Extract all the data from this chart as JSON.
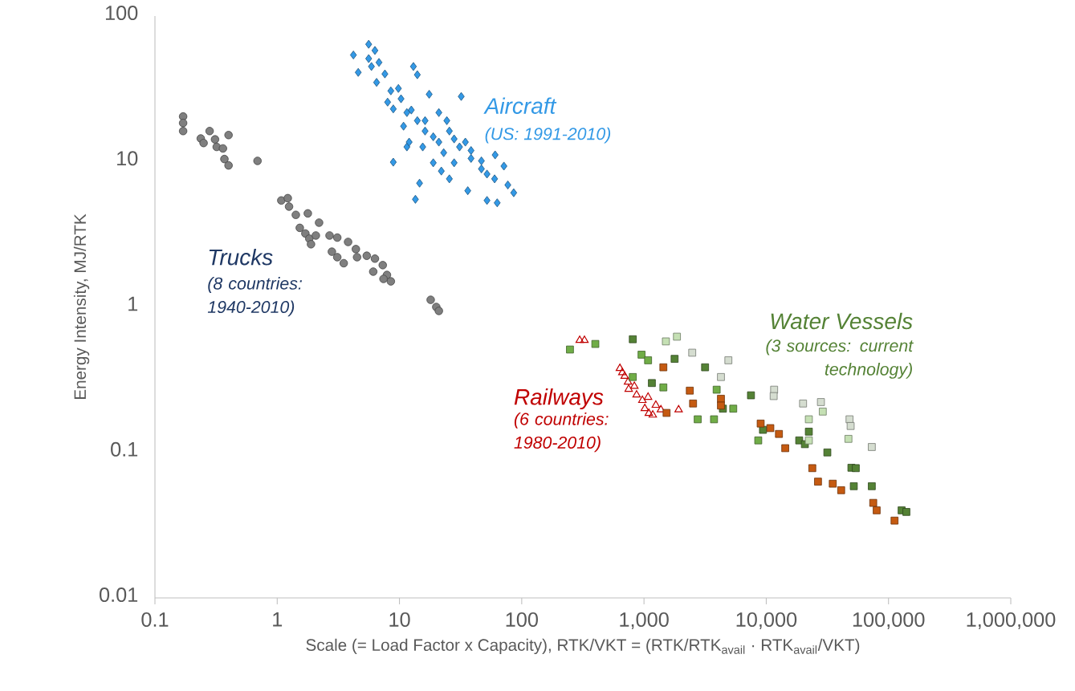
{
  "chart_data": {
    "type": "scatter",
    "xlabel": "Scale (= Load Factor x Capacity), RTK/VKT = (RTK/RTK$_{avail}$ · RTK$_{avail}$/VKT)",
    "ylabel": "Energy Intensity, MJ/RTK",
    "log": "xy",
    "xlim": [
      0.1,
      1000000
    ],
    "ylim": [
      0.01,
      100
    ],
    "xticks": [
      0.1,
      1,
      10,
      100,
      {
        "value": 1000,
        "label": "1,000"
      },
      {
        "value": 10000,
        "label": "10,000"
      },
      {
        "value": 100000,
        "label": "100,000"
      },
      {
        "value": 1000000,
        "label": "1,000,000"
      }
    ],
    "yticks": [
      0.01,
      0.1,
      1,
      10,
      100
    ],
    "series": [
      {
        "color": "#7f7f7f",
        "marker": "circle",
        "x": [
          0.17,
          0.17,
          0.17,
          0.237,
          0.25,
          0.28,
          0.31,
          0.32,
          0.36,
          0.37,
          0.4,
          0.4,
          0.69,
          1.08,
          1.22,
          1.25,
          1.42,
          1.78,
          2.2,
          1.53,
          1.7,
          1.83,
          1.89,
          2.07,
          2.68,
          3.1,
          3.8,
          4.4,
          5.4,
          6.3,
          7.3,
          7.9,
          8.5,
          2.8,
          3.1,
          3.5,
          4.5,
          6.1,
          7.4,
          18,
          20,
          21
        ],
        "values": [
          20.4,
          18.4,
          16.2,
          14.4,
          13.4,
          16.2,
          14.2,
          12.6,
          12.3,
          10.4,
          9.4,
          15.2,
          10.1,
          5.4,
          5.6,
          4.9,
          4.3,
          4.4,
          3.8,
          3.5,
          3.2,
          2.95,
          2.7,
          3.1,
          3.1,
          3.0,
          2.8,
          2.5,
          2.25,
          2.15,
          1.94,
          1.66,
          1.5,
          2.4,
          2.2,
          2.0,
          2.2,
          1.75,
          1.56,
          1.12,
          1.0,
          0.94
        ]
      },
      {
        "color": "#3399e6",
        "marker": "diamond",
        "x": [
          4.2,
          5.6,
          6.3,
          4.6,
          5.9,
          7.6,
          6.5,
          8.0,
          8.9,
          9.8,
          13,
          14,
          17.5,
          32,
          11.5,
          14,
          10.8,
          16.2,
          21,
          24.4,
          11.5,
          8.9,
          15.5,
          18.9,
          23,
          28,
          34.6,
          18.9,
          22,
          28,
          38.5,
          46.8,
          60.6,
          71.5,
          52,
          60,
          77,
          86,
          36.2,
          52,
          63,
          14.6,
          13.5,
          12,
          25.6,
          21,
          8.5,
          10.3,
          12.5,
          16.2,
          25.6,
          31,
          38.5,
          46.8,
          5.6,
          6.8
        ],
        "values": [
          54,
          64,
          58,
          41,
          45,
          40,
          35,
          25.6,
          23,
          31.8,
          45,
          39.5,
          29,
          28,
          21.7,
          19.1,
          17.5,
          16.2,
          21.7,
          19.1,
          12.6,
          9.9,
          12.6,
          14.8,
          11.5,
          14.3,
          13.6,
          9.8,
          8.6,
          9.8,
          10.5,
          10.1,
          11.1,
          9.3,
          8.2,
          7.6,
          6.9,
          6.1,
          6.3,
          5.4,
          5.2,
          7.1,
          5.5,
          13.6,
          7.6,
          13.6,
          30.6,
          27,
          22.6,
          19.1,
          16.2,
          12.6,
          11.9,
          8.9,
          51,
          48
        ]
      },
      {
        "color": "#c00000",
        "marker": "triangle",
        "x": [
          298,
          326,
          635,
          665,
          695,
          740,
          750,
          834,
          870,
          970,
          1080,
          1015,
          1095,
          1250,
          1375,
          1920,
          1180
        ],
        "values": [
          0.6,
          0.6,
          0.385,
          0.36,
          0.34,
          0.31,
          0.277,
          0.29,
          0.253,
          0.232,
          0.244,
          0.204,
          0.189,
          0.215,
          0.2,
          0.2,
          0.184
        ]
      },
      {
        "color": "#548235",
        "marker": "square",
        "x": [
          810,
          1780,
          1160,
          3160,
          7500,
          4420,
          18600,
          20700,
          22300,
          31600,
          49700,
          54000,
          52000,
          73000,
          128000,
          140000,
          9400
        ],
        "values": [
          0.6,
          0.44,
          0.3,
          0.385,
          0.247,
          0.2,
          0.121,
          0.114,
          0.139,
          0.1,
          0.0785,
          0.078,
          0.0586,
          0.0586,
          0.04,
          0.039,
          0.143
        ]
      },
      {
        "color": "#70ad47",
        "marker": "square",
        "x": [
          248,
          400,
          955,
          1080,
          810,
          1440,
          3930,
          5370,
          2750,
          3740,
          8600
        ],
        "values": [
          0.51,
          0.557,
          0.47,
          0.43,
          0.33,
          0.28,
          0.27,
          0.2,
          0.169,
          0.169,
          0.121
        ]
      },
      {
        "color": "#c5e0b4",
        "marker": "square",
        "x": [
          1510,
          1860,
          22300,
          29000,
          22300,
          47000
        ],
        "values": [
          0.58,
          0.625,
          0.169,
          0.191,
          0.121,
          0.124
        ]
      },
      {
        "color": "#d5ddd0",
        "marker": "square",
        "x": [
          2480,
          4900,
          4260,
          11600,
          11500,
          20000,
          28000,
          48000,
          49000,
          73000
        ],
        "values": [
          0.485,
          0.43,
          0.33,
          0.27,
          0.244,
          0.217,
          0.222,
          0.169,
          0.152,
          0.109
        ]
      },
      {
        "color": "#c55a11",
        "marker": "square",
        "x": [
          1440,
          2370,
          2520,
          4260,
          4260,
          1530,
          9000,
          10800,
          12700,
          14300,
          23800,
          26500,
          35000,
          41000,
          75000,
          80000,
          112000
        ],
        "values": [
          0.385,
          0.266,
          0.217,
          0.234,
          0.21,
          0.187,
          0.158,
          0.147,
          0.134,
          0.107,
          0.078,
          0.063,
          0.061,
          0.055,
          0.045,
          0.04,
          0.034
        ]
      }
    ],
    "annotations": [
      "Aircraft",
      "(US: 1991-2010)",
      "Trucks",
      "(8 countries: 1940-2010)",
      "Railways",
      "(6 countries: 1980-2010)",
      "Water Vessels",
      "(3 sources: current technology)"
    ]
  }
}
